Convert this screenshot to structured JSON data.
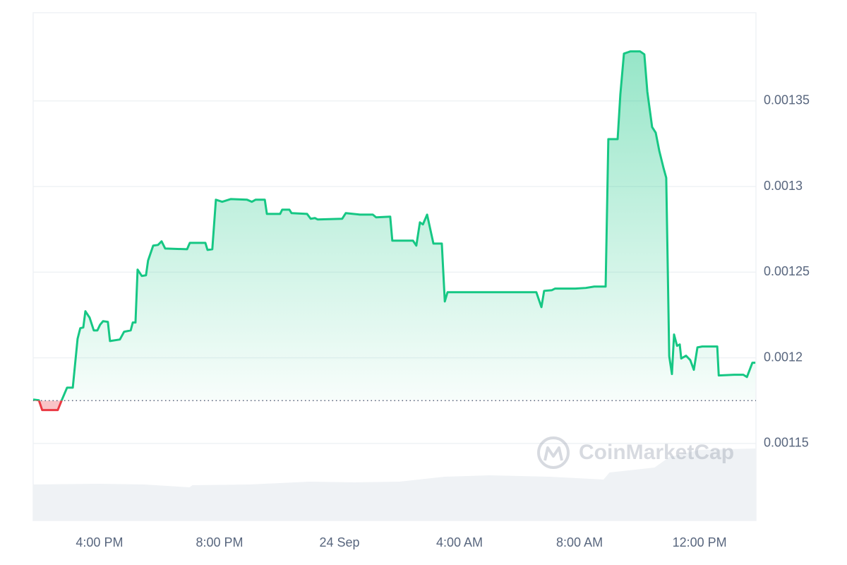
{
  "chart_data": {
    "type": "line",
    "watermark": "CoinMarketCap",
    "xlim": [
      13.79,
      37.88
    ],
    "ylim": [
      0.001105,
      0.0014015
    ],
    "xticks": [
      {
        "value": 16,
        "label": "4:00 PM"
      },
      {
        "value": 20,
        "label": "8:00 PM"
      },
      {
        "value": 24,
        "label": "24 Sep"
      },
      {
        "value": 28,
        "label": "4:00 AM"
      },
      {
        "value": 32,
        "label": "8:00 AM"
      },
      {
        "value": 36,
        "label": "12:00 PM"
      }
    ],
    "yticks": [
      0.00115,
      0.0012,
      0.00125,
      0.0013,
      0.00135
    ],
    "grid": true,
    "reference_value": 0.001175,
    "up_color": "#16c784",
    "down_color": "#ea3943",
    "x": [
      13.79,
      13.98,
      14.09,
      14.61,
      14.75,
      14.92,
      15.11,
      15.27,
      15.36,
      15.46,
      15.53,
      15.67,
      15.81,
      15.93,
      16.02,
      16.12,
      16.28,
      16.35,
      16.68,
      16.82,
      17.04,
      17.11,
      17.2,
      17.27,
      17.41,
      17.55,
      17.62,
      17.79,
      17.95,
      18.07,
      18.19,
      18.92,
      19.01,
      19.53,
      19.6,
      19.76,
      19.88,
      20.09,
      20.38,
      20.92,
      21.08,
      21.2,
      21.51,
      21.58,
      22.02,
      22.09,
      22.33,
      22.4,
      22.92,
      23.04,
      23.18,
      23.27,
      24.09,
      24.21,
      24.68,
      25.11,
      25.22,
      25.69,
      25.76,
      26.45,
      26.56,
      26.68,
      26.78,
      26.92,
      27.13,
      27.41,
      27.51,
      27.6,
      30.56,
      30.73,
      30.82,
      31.08,
      31.18,
      31.86,
      32.21,
      32.49,
      32.87,
      32.96,
      33.27,
      33.36,
      33.48,
      33.69,
      34.02,
      34.16,
      34.26,
      34.42,
      34.54,
      34.66,
      34.8,
      34.89,
      34.99,
      35.08,
      35.15,
      35.25,
      35.34,
      35.39,
      35.55,
      35.69,
      35.81,
      35.93,
      36.09,
      36.59,
      36.64,
      37.15,
      37.46,
      37.58,
      37.76,
      37.86
    ],
    "values": [
      0.0011756,
      0.0011752,
      0.0011695,
      0.0011695,
      0.0011756,
      0.0011826,
      0.0011826,
      0.0012111,
      0.0012173,
      0.0012177,
      0.0012272,
      0.0012235,
      0.001216,
      0.001216,
      0.0012193,
      0.0012214,
      0.001221,
      0.0012098,
      0.0012107,
      0.0012152,
      0.001216,
      0.0012206,
      0.0012206,
      0.0012515,
      0.0012478,
      0.0012482,
      0.0012568,
      0.0012655,
      0.0012659,
      0.001268,
      0.0012638,
      0.0012634,
      0.0012671,
      0.0012671,
      0.001263,
      0.0012634,
      0.0012923,
      0.0012911,
      0.0012927,
      0.0012923,
      0.0012911,
      0.0012923,
      0.0012923,
      0.001284,
      0.001284,
      0.0012865,
      0.0012865,
      0.0012845,
      0.001284,
      0.0012812,
      0.0012816,
      0.0012808,
      0.0012812,
      0.0012845,
      0.0012836,
      0.0012836,
      0.001282,
      0.0012824,
      0.0012684,
      0.0012684,
      0.0012655,
      0.0012791,
      0.0012779,
      0.0012836,
      0.0012667,
      0.0012667,
      0.0012329,
      0.0012383,
      0.0012383,
      0.0012296,
      0.0012391,
      0.0012395,
      0.0012404,
      0.0012404,
      0.0012408,
      0.0012416,
      0.0012416,
      0.0013277,
      0.0013277,
      0.0013537,
      0.0013776,
      0.0013789,
      0.0013789,
      0.0013772,
      0.0013554,
      0.0013347,
      0.0013314,
      0.0013207,
      0.0013108,
      0.0013051,
      0.0012009,
      0.0011905,
      0.0012136,
      0.001207,
      0.0012078,
      0.0011996,
      0.0012012,
      0.0011987,
      0.001193,
      0.0012061,
      0.0012066,
      0.0012066,
      0.0011897,
      0.0011901,
      0.0011901,
      0.0011888,
      0.0011971,
      0.0011971
    ],
    "volume": {
      "x": [
        13.79,
        16,
        17.5,
        19,
        19.1,
        21,
        23,
        24.5,
        26,
        27.5,
        29,
        31,
        32.8,
        33,
        34.5,
        35,
        36,
        37.88
      ],
      "values": [
        51,
        52,
        51,
        47,
        50,
        51,
        55,
        54,
        55,
        62,
        64,
        62,
        58,
        68,
        75,
        90,
        100,
        102
      ]
    }
  }
}
